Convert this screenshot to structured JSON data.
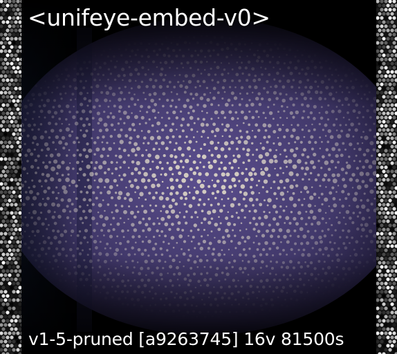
{
  "header": {
    "label": "<unifeye-embed-v0>"
  },
  "footer": {
    "label": "v1-5-pruned [a9263745]  16v 81500s"
  },
  "colors": {
    "background": "#000000",
    "band_fabric": "#524780",
    "band_dark": "#141226",
    "dot_light": "#d9d2c4",
    "side_border": "#101010",
    "caption_text": "#ffffff"
  }
}
